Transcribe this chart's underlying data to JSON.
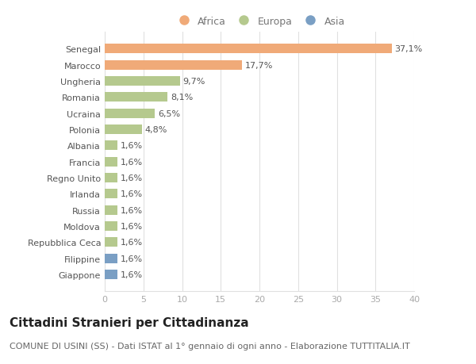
{
  "categories": [
    "Giappone",
    "Filippine",
    "Repubblica Ceca",
    "Moldova",
    "Russia",
    "Irlanda",
    "Regno Unito",
    "Francia",
    "Albania",
    "Polonia",
    "Ucraina",
    "Romania",
    "Ungheria",
    "Marocco",
    "Senegal"
  ],
  "values": [
    1.6,
    1.6,
    1.6,
    1.6,
    1.6,
    1.6,
    1.6,
    1.6,
    1.6,
    4.8,
    6.5,
    8.1,
    9.7,
    17.7,
    37.1
  ],
  "labels": [
    "1,6%",
    "1,6%",
    "1,6%",
    "1,6%",
    "1,6%",
    "1,6%",
    "1,6%",
    "1,6%",
    "1,6%",
    "4,8%",
    "6,5%",
    "8,1%",
    "9,7%",
    "17,7%",
    "37,1%"
  ],
  "colors": [
    "#7a9fc4",
    "#7a9fc4",
    "#b5c98e",
    "#b5c98e",
    "#b5c98e",
    "#b5c98e",
    "#b5c98e",
    "#b5c98e",
    "#b5c98e",
    "#b5c98e",
    "#b5c98e",
    "#b5c98e",
    "#b5c98e",
    "#f0aa78",
    "#f0aa78"
  ],
  "legend_labels": [
    "Africa",
    "Europa",
    "Asia"
  ],
  "legend_colors": [
    "#f0aa78",
    "#b5c98e",
    "#7a9fc4"
  ],
  "xlim": [
    0,
    40
  ],
  "xticks": [
    0,
    5,
    10,
    15,
    20,
    25,
    30,
    35,
    40
  ],
  "title": "Cittadini Stranieri per Cittadinanza",
  "subtitle": "COMUNE DI USINI (SS) - Dati ISTAT al 1° gennaio di ogni anno - Elaborazione TUTTITALIA.IT",
  "bg_color": "#ffffff",
  "plot_bg_color": "#ffffff",
  "grid_color": "#e0e0e0",
  "bar_height": 0.6,
  "title_fontsize": 11,
  "subtitle_fontsize": 8,
  "label_fontsize": 8,
  "tick_fontsize": 8,
  "legend_fontsize": 9,
  "label_color": "#555555",
  "ytick_color": "#555555",
  "xtick_color": "#aaaaaa"
}
